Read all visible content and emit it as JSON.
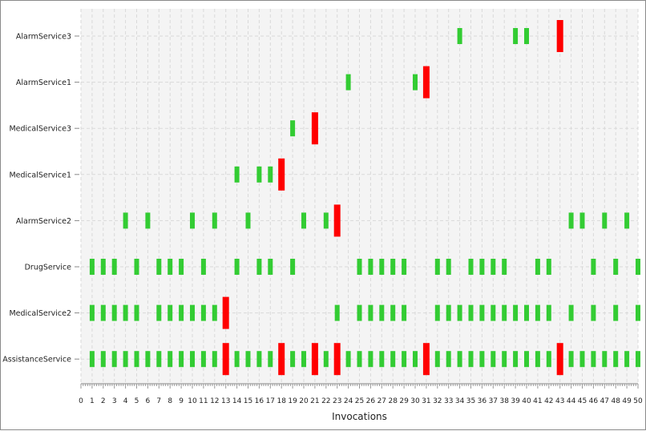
{
  "chart_data": {
    "type": "timeline",
    "xlabel": "Invocations",
    "xlim": [
      0,
      50
    ],
    "x_ticks": [
      0,
      1,
      2,
      3,
      4,
      5,
      6,
      7,
      8,
      9,
      10,
      11,
      12,
      13,
      14,
      15,
      16,
      17,
      18,
      19,
      20,
      21,
      22,
      23,
      24,
      25,
      26,
      27,
      28,
      29,
      30,
      31,
      32,
      33,
      34,
      35,
      36,
      37,
      38,
      39,
      40,
      41,
      42,
      43,
      44,
      45,
      46,
      47,
      48,
      49,
      50
    ],
    "grid": true,
    "colors": {
      "success": "#33cc33",
      "failure": "#ff0000"
    },
    "services": [
      {
        "name": "AlarmService3",
        "success": [
          34,
          39,
          40
        ],
        "failure": [
          43
        ]
      },
      {
        "name": "AlarmService1",
        "success": [
          24,
          30
        ],
        "failure": [
          31
        ]
      },
      {
        "name": "MedicalService3",
        "success": [
          19
        ],
        "failure": [
          21
        ]
      },
      {
        "name": "MedicalService1",
        "success": [
          14,
          16,
          17
        ],
        "failure": [
          18
        ]
      },
      {
        "name": "AlarmService2",
        "success": [
          4,
          6,
          10,
          12,
          15,
          20,
          22,
          44,
          45,
          47,
          49
        ],
        "failure": [
          23
        ]
      },
      {
        "name": "DrugService",
        "success": [
          1,
          2,
          3,
          5,
          7,
          8,
          9,
          11,
          14,
          16,
          17,
          19,
          25,
          26,
          27,
          28,
          29,
          32,
          33,
          35,
          36,
          37,
          38,
          41,
          42,
          46,
          48,
          50
        ],
        "failure": []
      },
      {
        "name": "MedicalService2",
        "success": [
          1,
          2,
          3,
          4,
          5,
          7,
          8,
          9,
          10,
          11,
          12,
          23,
          25,
          26,
          27,
          28,
          29,
          32,
          33,
          34,
          35,
          36,
          37,
          38,
          39,
          40,
          41,
          42,
          44,
          46,
          48,
          50
        ],
        "failure": [
          13
        ]
      },
      {
        "name": "AssistanceService",
        "success": [
          1,
          2,
          3,
          4,
          5,
          6,
          7,
          8,
          9,
          10,
          11,
          12,
          14,
          15,
          16,
          17,
          19,
          20,
          22,
          24,
          25,
          26,
          27,
          28,
          29,
          30,
          32,
          33,
          34,
          35,
          36,
          37,
          38,
          39,
          40,
          41,
          42,
          44,
          45,
          46,
          47,
          48,
          49,
          50
        ],
        "failure": [
          13,
          18,
          21,
          23,
          31,
          43
        ]
      }
    ]
  }
}
